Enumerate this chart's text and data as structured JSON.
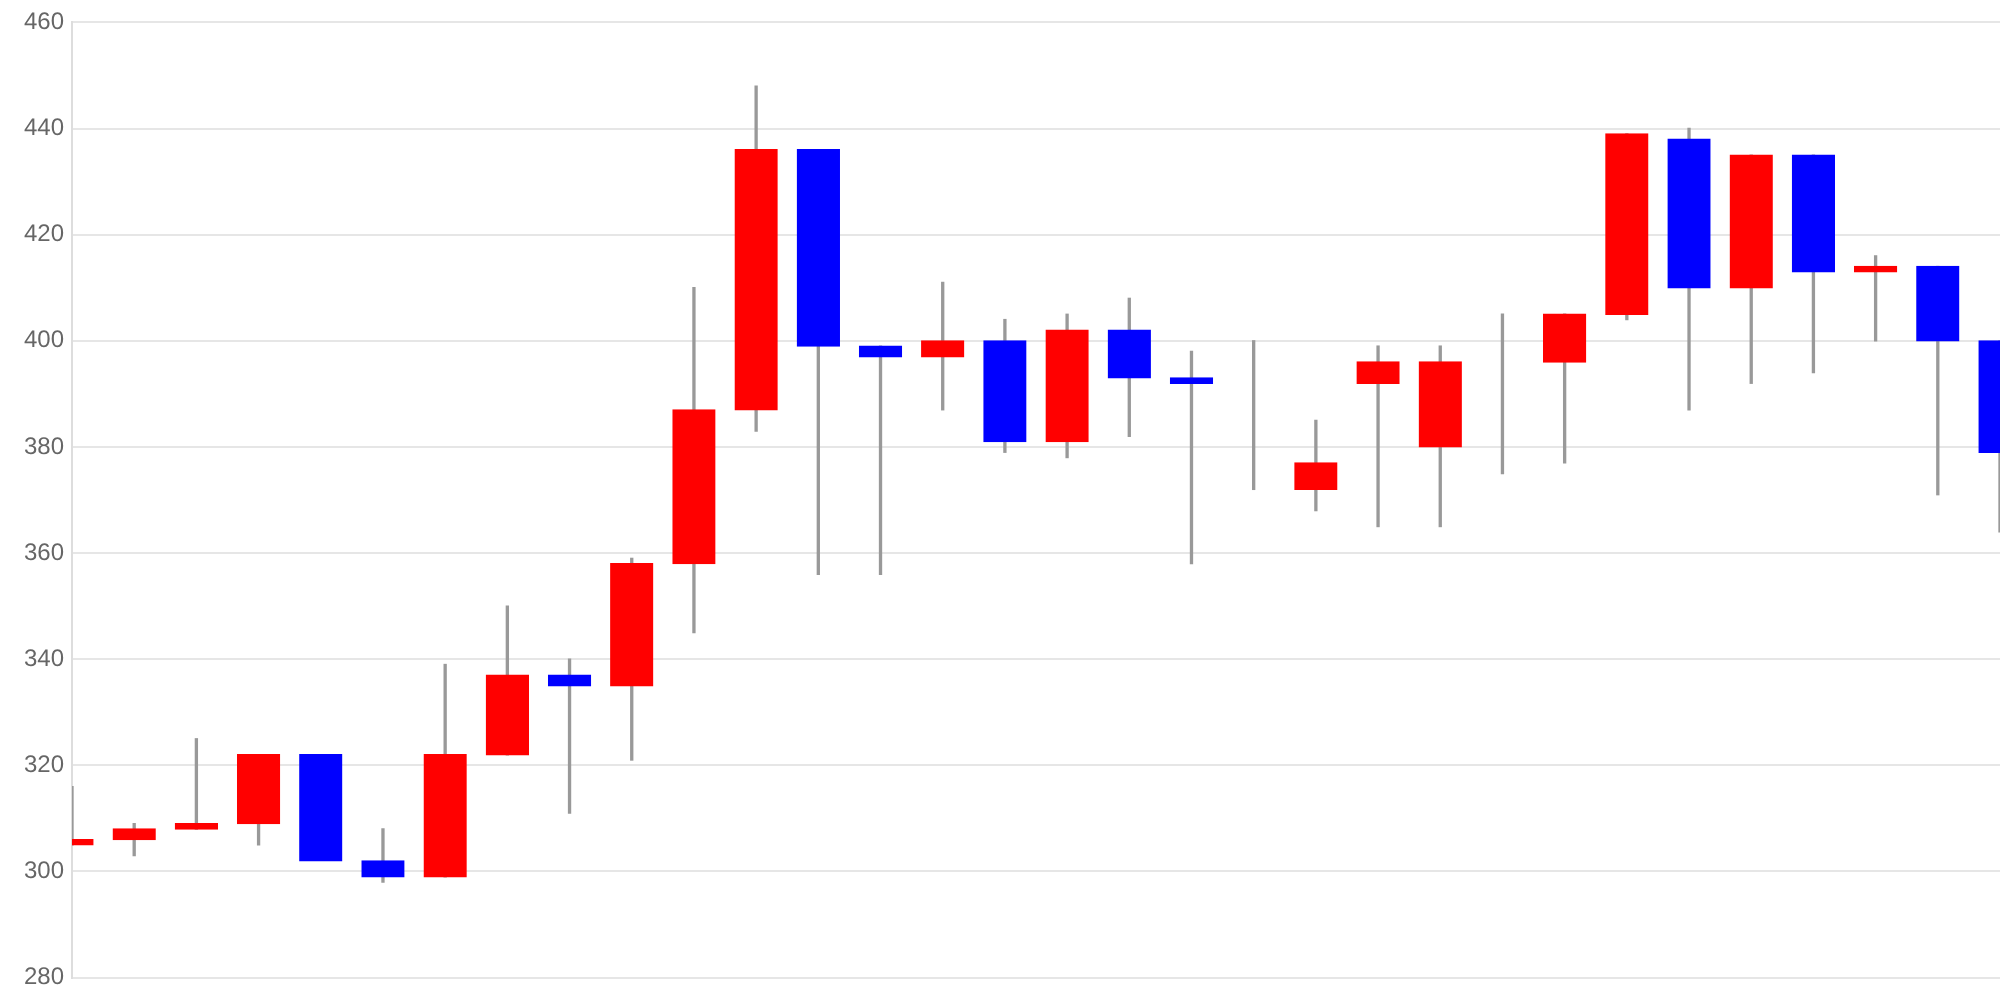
{
  "chart_data": {
    "type": "candlestick",
    "categories": [
      null,
      null,
      null,
      null,
      null,
      null,
      null,
      null,
      null,
      null,
      null,
      null,
      null,
      null,
      null,
      null,
      null,
      null,
      null,
      null,
      null,
      null,
      null,
      null,
      null,
      null,
      null,
      null,
      null,
      null,
      null,
      null
    ],
    "ohlc": [
      [
        305,
        316,
        305,
        306
      ],
      [
        306,
        309,
        303,
        308
      ],
      [
        308,
        325,
        308,
        309
      ],
      [
        309,
        322,
        305,
        322
      ],
      [
        322,
        322,
        302,
        302
      ],
      [
        302,
        308,
        298,
        299
      ],
      [
        299,
        339,
        299,
        322
      ],
      [
        322,
        350,
        322,
        337
      ],
      [
        337,
        340,
        311,
        335
      ],
      [
        335,
        359,
        321,
        358
      ],
      [
        358,
        410,
        345,
        387
      ],
      [
        387,
        448,
        383,
        436
      ],
      [
        436,
        436,
        356,
        399
      ],
      [
        399,
        399,
        356,
        397
      ],
      [
        397,
        411,
        387,
        400
      ],
      [
        400,
        404,
        379,
        381
      ],
      [
        381,
        405,
        378,
        402
      ],
      [
        402,
        408,
        382,
        393
      ],
      [
        393,
        398,
        358,
        392
      ],
      [
        381,
        400,
        372,
        381
      ],
      [
        372,
        385,
        368,
        377
      ],
      [
        392,
        399,
        365,
        396
      ],
      [
        380,
        399,
        365,
        396
      ],
      [
        396,
        405,
        375,
        396
      ],
      [
        396,
        405,
        377,
        405
      ],
      [
        405,
        439,
        404,
        439
      ],
      [
        438,
        440,
        387,
        410
      ],
      [
        410,
        435,
        392,
        435
      ],
      [
        435,
        435,
        394,
        413
      ],
      [
        413,
        416,
        400,
        414
      ],
      [
        414,
        414,
        371,
        400
      ],
      [
        400,
        400,
        364,
        379
      ]
    ],
    "colors": [
      "#ff0000",
      "#ff0000",
      "#ff0000",
      "#ff0000",
      "#0000ff",
      "#0000ff",
      "#ff0000",
      "#ff0000",
      "#0000ff",
      "#ff0000",
      "#ff0000",
      "#ff0000",
      "#0000ff",
      "#0000ff",
      "#ff0000",
      "#0000ff",
      "#ff0000",
      "#0000ff",
      "#0000ff",
      "#ff0000",
      "#ff0000",
      "#ff0000",
      "#ff0000",
      "#ff0000",
      "#ff0000",
      "#ff0000",
      "#0000ff",
      "#ff0000",
      "#0000ff",
      "#ff0000",
      "#0000ff",
      "#0000ff"
    ],
    "ylim": [
      280,
      460
    ],
    "yticks": [
      280,
      300,
      320,
      340,
      360,
      380,
      400,
      420,
      440,
      460
    ],
    "grid": "y",
    "tick_labels": "y"
  }
}
